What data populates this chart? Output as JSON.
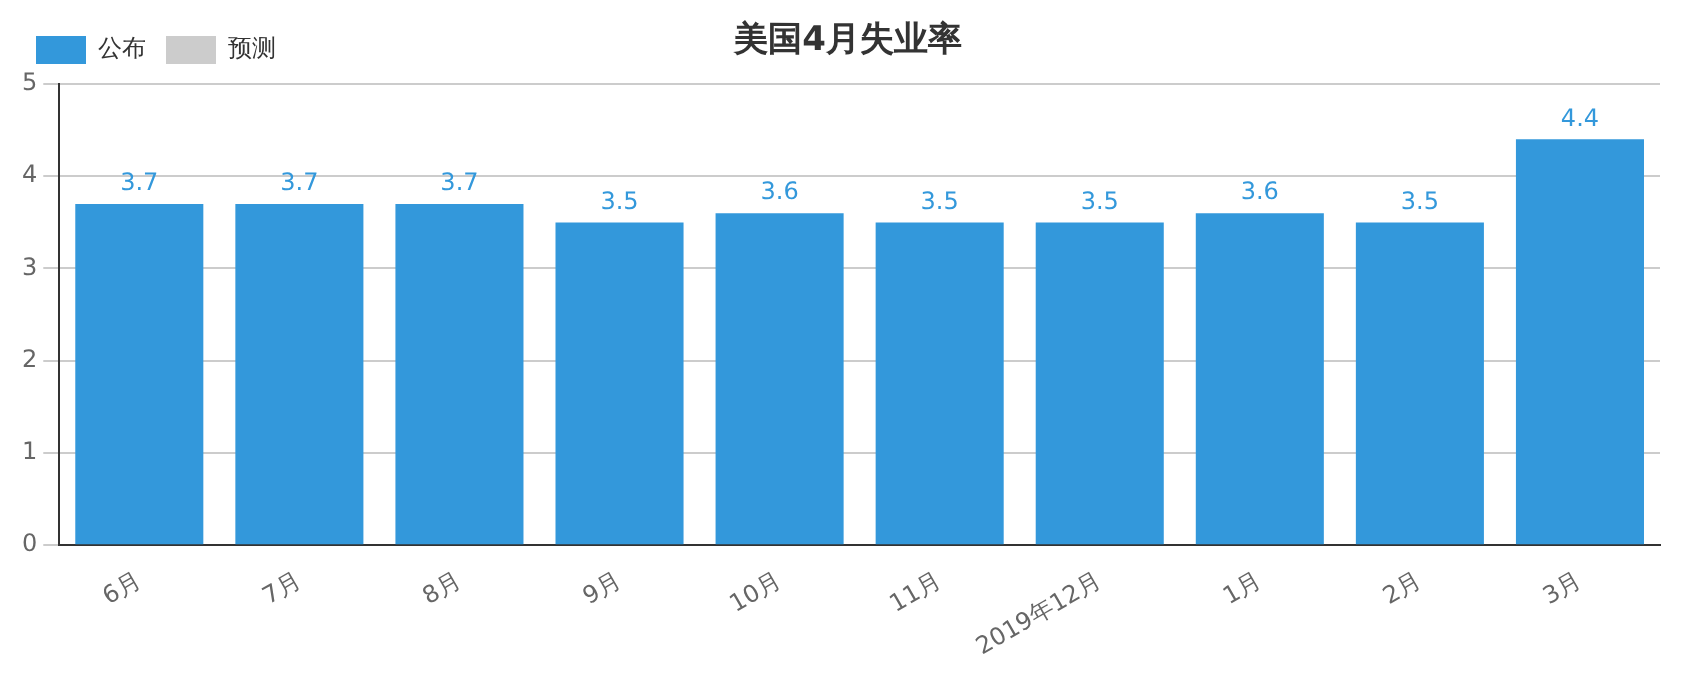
{
  "chart_data": {
    "type": "bar",
    "title": "美国4月失业率",
    "categories": [
      "6月",
      "7月",
      "8月",
      "9月",
      "10月",
      "11月",
      "2019年12月",
      "1月",
      "2月",
      "3月"
    ],
    "series": [
      {
        "name": "公布",
        "color": "#3398db",
        "values": [
          3.7,
          3.7,
          3.7,
          3.5,
          3.6,
          3.5,
          3.5,
          3.6,
          3.5,
          4.4
        ]
      },
      {
        "name": "预测",
        "color": "#cccccc",
        "values": [
          null,
          null,
          null,
          null,
          null,
          null,
          null,
          null,
          null,
          null
        ]
      }
    ],
    "ylim": [
      0,
      5
    ],
    "yticks": [
      0,
      1,
      2,
      3,
      4,
      5
    ],
    "grid": "y",
    "legend": "top left",
    "data_labels": true
  }
}
